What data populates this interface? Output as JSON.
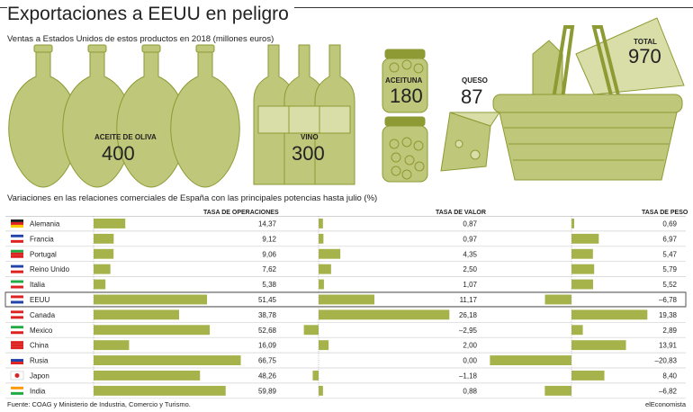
{
  "title": "Exportaciones a EEUU en peligro",
  "subtitle": "Ventas a Estados Unidos de estos productos en 2018 (millones euros)",
  "products": [
    {
      "name": "ACEITE DE OLIVA",
      "value": "400"
    },
    {
      "name": "VINO",
      "value": "300"
    },
    {
      "name": "ACEITUNA",
      "value": "180"
    },
    {
      "name": "QUESO",
      "value": "87"
    },
    {
      "name": "TOTAL",
      "value": "970"
    }
  ],
  "section_title": "Variaciones en las relaciones comerciales de España con las principales potencias hasta julio (%)",
  "colors": {
    "bar": "#a6b34a",
    "highlight_border": "#555555",
    "icon_fill": "#bfc77a",
    "icon_dark": "#8e9a33"
  },
  "chart_data": {
    "type": "bar",
    "orientation": "horizontal",
    "categories": [
      "Alemania",
      "Francia",
      "Portugal",
      "Reino Unido",
      "Italia",
      "EEUU",
      "Canada",
      "Mexico",
      "China",
      "Rusia",
      "Japon",
      "India"
    ],
    "highlight": "EEUU",
    "series": [
      {
        "name": "TASA DE OPERACIONES",
        "values": [
          14.37,
          9.12,
          9.06,
          7.62,
          5.38,
          51.45,
          38.78,
          52.68,
          16.09,
          66.75,
          48.26,
          59.89
        ],
        "labels": [
          "14,37",
          "9,12",
          "9,06",
          "7,62",
          "5,38",
          "51,45",
          "38,78",
          "52,68",
          "16,09",
          "66,75",
          "48,26",
          "59,89"
        ]
      },
      {
        "name": "TASA DE VALOR",
        "values": [
          0.87,
          0.97,
          4.35,
          2.5,
          1.07,
          11.17,
          26.18,
          -2.95,
          2.0,
          0.0,
          -1.18,
          0.88
        ],
        "labels": [
          "0,87",
          "0,97",
          "4,35",
          "2,50",
          "1,07",
          "11,17",
          "26,18",
          "–2,95",
          "2,00",
          "0,00",
          "–1,18",
          "0,88"
        ]
      },
      {
        "name": "TASA DE PESO",
        "values": [
          0.69,
          6.97,
          5.47,
          5.79,
          5.52,
          -6.78,
          19.38,
          2.89,
          13.91,
          -20.83,
          8.4,
          -6.82
        ],
        "labels": [
          "0,69",
          "6,97",
          "5,47",
          "5,79",
          "5,52",
          "–6,78",
          "19,38",
          "2,89",
          "13,91",
          "–20,83",
          "8,40",
          "–6,82"
        ]
      }
    ]
  },
  "footer": {
    "source": "Fuente: COAG y Ministerio de Industria, Comercio y Turismo.",
    "credit": "elEconomista"
  }
}
